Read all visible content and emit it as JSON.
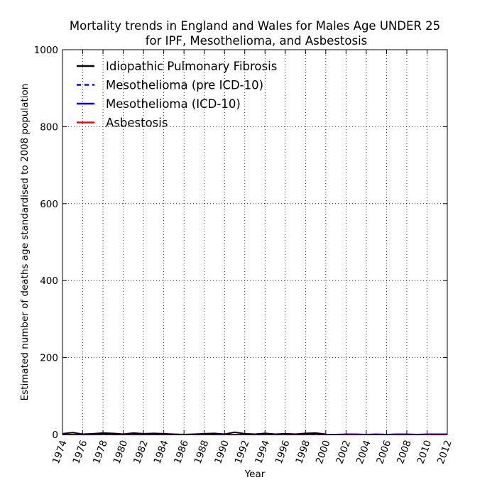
{
  "chart_data": {
    "type": "line",
    "title": "Mortality trends in England and Wales for Males Age UNDER 25",
    "subtitle": "for IPF, Mesothelioma, and Asbestosis",
    "xlabel": "Year",
    "ylabel": "Estimated number of deaths age standardised to 2008 population",
    "xlim": [
      1974,
      2012
    ],
    "ylim": [
      0,
      1000
    ],
    "x_ticks": [
      "1974",
      "1976",
      "1978",
      "1980",
      "1982",
      "1984",
      "1986",
      "1988",
      "1990",
      "1992",
      "1994",
      "1996",
      "1998",
      "2000",
      "2002",
      "2004",
      "2006",
      "2008",
      "2010",
      "2012"
    ],
    "y_ticks": [
      "0",
      "200",
      "400",
      "600",
      "800",
      "1000"
    ],
    "grid": true,
    "legend_position": "top-left",
    "series": [
      {
        "name": "Idiopathic Pulmonary Fibrosis",
        "color": "#000000",
        "style": "solid",
        "x": [
          1974,
          1975,
          1976,
          1977,
          1978,
          1979,
          1980,
          1981,
          1982,
          1983,
          1984,
          1985,
          1986,
          1987,
          1988,
          1989,
          1990,
          1991,
          1992,
          1993,
          1994,
          1995,
          1996,
          1997,
          1998,
          1999,
          2000
        ],
        "y": [
          2,
          5,
          1,
          2,
          4,
          3,
          1,
          4,
          2,
          3,
          2,
          1,
          0,
          1,
          2,
          3,
          1,
          6,
          2,
          1,
          3,
          1,
          2,
          1,
          3,
          4,
          1
        ]
      },
      {
        "name": "Mesothelioma (pre ICD-10)",
        "color": "#0000ff",
        "style": "dashed",
        "x": [
          1974,
          1975,
          1976,
          1977,
          1978,
          1979,
          1980,
          1981,
          1982,
          1983,
          1984,
          1985,
          1986,
          1987,
          1988,
          1989,
          1990,
          1991,
          1992,
          1993,
          1994,
          1995,
          1996,
          1997,
          1998,
          1999,
          2000
        ],
        "y": [
          0,
          0,
          0,
          0,
          0,
          0,
          0,
          0,
          0,
          0,
          0,
          0,
          0,
          0,
          0,
          0,
          0,
          0,
          0,
          0,
          0,
          0,
          0,
          0,
          0,
          0,
          0
        ]
      },
      {
        "name": "Mesothelioma (ICD-10)",
        "color": "#0000ff",
        "style": "solid",
        "x": [
          2000,
          2001,
          2002,
          2003,
          2004,
          2005,
          2006,
          2007,
          2008,
          2009,
          2010,
          2011,
          2012
        ],
        "y": [
          0,
          0,
          1,
          1,
          0,
          1,
          0,
          1,
          1,
          0,
          1,
          1,
          1
        ]
      },
      {
        "name": "Asbestosis",
        "color": "#ff0000",
        "style": "solid",
        "x": [
          1974,
          1976,
          1978,
          1980,
          1982,
          1984,
          1986,
          1988,
          1990,
          1992,
          1994,
          1996,
          1998,
          2000,
          2002,
          2004,
          2006,
          2008,
          2010,
          2012
        ],
        "y": [
          0,
          0,
          0,
          0,
          0,
          0,
          0,
          0,
          0,
          0,
          0,
          0,
          0,
          0,
          0,
          0,
          0,
          0,
          0,
          0
        ]
      }
    ]
  }
}
